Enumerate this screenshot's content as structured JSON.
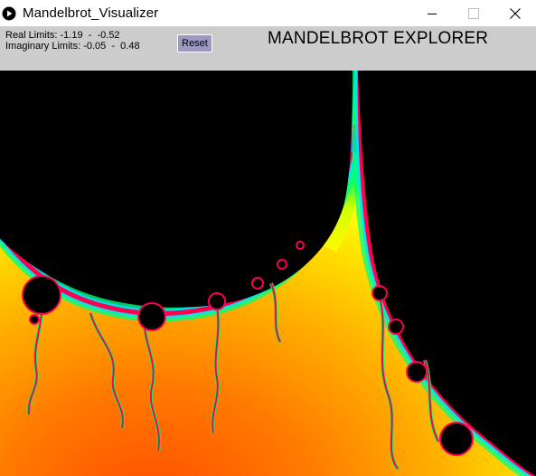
{
  "window": {
    "title": "Mandelbrot_Visualizer",
    "app_icon": "play-circle-icon",
    "controls": [
      "minimize-icon",
      "maximize-icon",
      "close-icon"
    ]
  },
  "panel": {
    "real_limits_label": "Real Limits: -1.19  -  -0.52",
    "imaginary_limits_label": "Imaginary Limits: -0.05  -  0.48",
    "reset_label": "Reset",
    "heading": "MANDELBROT EXPLORER"
  },
  "colors": {
    "panel_bg": "#cccccc",
    "reset_bg": "#9b99c4",
    "set_interior": "#000000",
    "gradient": [
      "#ff4c00",
      "#ff8a00",
      "#ffc000",
      "#ffff00",
      "#c8ff00",
      "#00ff40",
      "#00ffd0",
      "#4040ff",
      "#ff0060"
    ]
  }
}
